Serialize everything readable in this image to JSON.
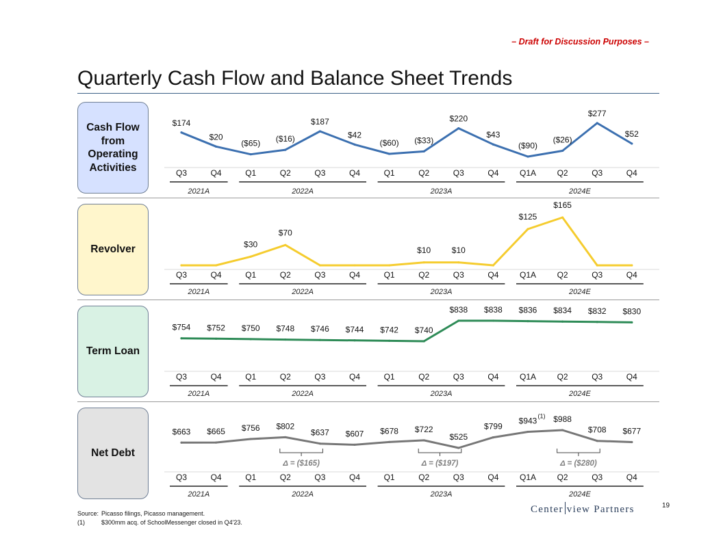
{
  "header": {
    "draft_label": "– Draft for Discussion Purposes –",
    "title": "Quarterly Cash Flow and Balance Sheet Trends"
  },
  "colors": {
    "cash_flow": "#3c70b0",
    "revolver": "#f5cc2e",
    "term_loan": "#2e8b57",
    "net_debt": "#777777",
    "cash_flow_box": "#d6e1ff",
    "revolver_box": "#fff6cc",
    "term_loan_box": "#d9f2e4",
    "net_debt_box": "#e3e3e3"
  },
  "chart_data": [
    {
      "type": "line",
      "panel": "Cash Flow from Operating Activities",
      "categories": [
        "Q3",
        "Q4",
        "Q1",
        "Q2",
        "Q3",
        "Q4",
        "Q1",
        "Q2",
        "Q3",
        "Q4",
        "Q1A",
        "Q2",
        "Q3",
        "Q4"
      ],
      "year_groups": [
        {
          "label": "2021A",
          "count": 2
        },
        {
          "label": "2022A",
          "count": 4
        },
        {
          "label": "2023A",
          "count": 4
        },
        {
          "label": "2024E",
          "count": 4
        }
      ],
      "values": [
        174,
        20,
        -65,
        -16,
        187,
        42,
        -60,
        -33,
        220,
        43,
        -90,
        -26,
        277,
        52
      ],
      "data_labels": [
        "$174",
        "$20",
        "($65)",
        "($16)",
        "$187",
        "$42",
        "($60)",
        "($33)",
        "$220",
        "$43",
        "($90)",
        "($26)",
        "$277",
        "$52"
      ]
    },
    {
      "type": "line",
      "panel": "Revolver",
      "categories": [
        "Q3",
        "Q4",
        "Q1",
        "Q2",
        "Q3",
        "Q4",
        "Q1",
        "Q2",
        "Q3",
        "Q4",
        "Q1A",
        "Q2",
        "Q3",
        "Q4"
      ],
      "year_groups": [
        {
          "label": "2021A",
          "count": 2
        },
        {
          "label": "2022A",
          "count": 4
        },
        {
          "label": "2023A",
          "count": 4
        },
        {
          "label": "2024E",
          "count": 4
        }
      ],
      "values": [
        0,
        0,
        30,
        70,
        0,
        0,
        0,
        10,
        10,
        0,
        125,
        165,
        0,
        0
      ],
      "data_labels": [
        "",
        "",
        "$30",
        "$70",
        "",
        "",
        "",
        "$10",
        "$10",
        "",
        "$125",
        "$165",
        "",
        ""
      ]
    },
    {
      "type": "line",
      "panel": "Term Loan",
      "categories": [
        "Q3",
        "Q4",
        "Q1",
        "Q2",
        "Q3",
        "Q4",
        "Q1",
        "Q2",
        "Q3",
        "Q4",
        "Q1A",
        "Q2",
        "Q3",
        "Q4"
      ],
      "year_groups": [
        {
          "label": "2021A",
          "count": 2
        },
        {
          "label": "2022A",
          "count": 4
        },
        {
          "label": "2023A",
          "count": 4
        },
        {
          "label": "2024E",
          "count": 4
        }
      ],
      "values": [
        754,
        752,
        750,
        748,
        746,
        744,
        742,
        740,
        838,
        838,
        836,
        834,
        832,
        830
      ],
      "data_labels": [
        "$754",
        "$752",
        "$750",
        "$748",
        "$746",
        "$744",
        "$742",
        "$740",
        "$838",
        "$838",
        "$836",
        "$834",
        "$832",
        "$830"
      ]
    },
    {
      "type": "line",
      "panel": "Net Debt",
      "categories": [
        "Q3",
        "Q4",
        "Q1",
        "Q2",
        "Q3",
        "Q4",
        "Q1",
        "Q2",
        "Q3",
        "Q4",
        "Q1A",
        "Q2",
        "Q3",
        "Q4"
      ],
      "year_groups": [
        {
          "label": "2021A",
          "count": 2
        },
        {
          "label": "2022A",
          "count": 4
        },
        {
          "label": "2023A",
          "count": 4
        },
        {
          "label": "2024E",
          "count": 4
        }
      ],
      "values": [
        663,
        665,
        756,
        802,
        637,
        607,
        678,
        722,
        525,
        799,
        943,
        988,
        708,
        677
      ],
      "data_labels": [
        "$663",
        "$665",
        "$756",
        "$802",
        "$637",
        "$607",
        "$678",
        "$722",
        "$525",
        "$799",
        "$943",
        "$988",
        "$708",
        "$677"
      ],
      "annotations": [
        {
          "from_index": 3,
          "to_index": 4,
          "text": "Δ = ($165)"
        },
        {
          "from_index": 7,
          "to_index": 8,
          "text": "Δ = ($197)"
        },
        {
          "from_index": 11,
          "to_index": 12,
          "text": "Δ = ($280)"
        }
      ],
      "footnote_marker": {
        "index": 10,
        "text": "(1)"
      }
    }
  ],
  "panels": {
    "cash_flow_label": "Cash Flow from Operating Activities",
    "revolver_label": "Revolver",
    "term_loan_label": "Term Loan",
    "net_debt_label": "Net Debt"
  },
  "footer": {
    "source_key": "Source:",
    "source_text": "Picasso filings, Picasso management.",
    "note_key": "(1)",
    "note_text": "$300mm acq. of SchoolMessenger closed in Q4'23.",
    "logo_left": "Center",
    "logo_right": "view Partners",
    "page_number": "19"
  }
}
